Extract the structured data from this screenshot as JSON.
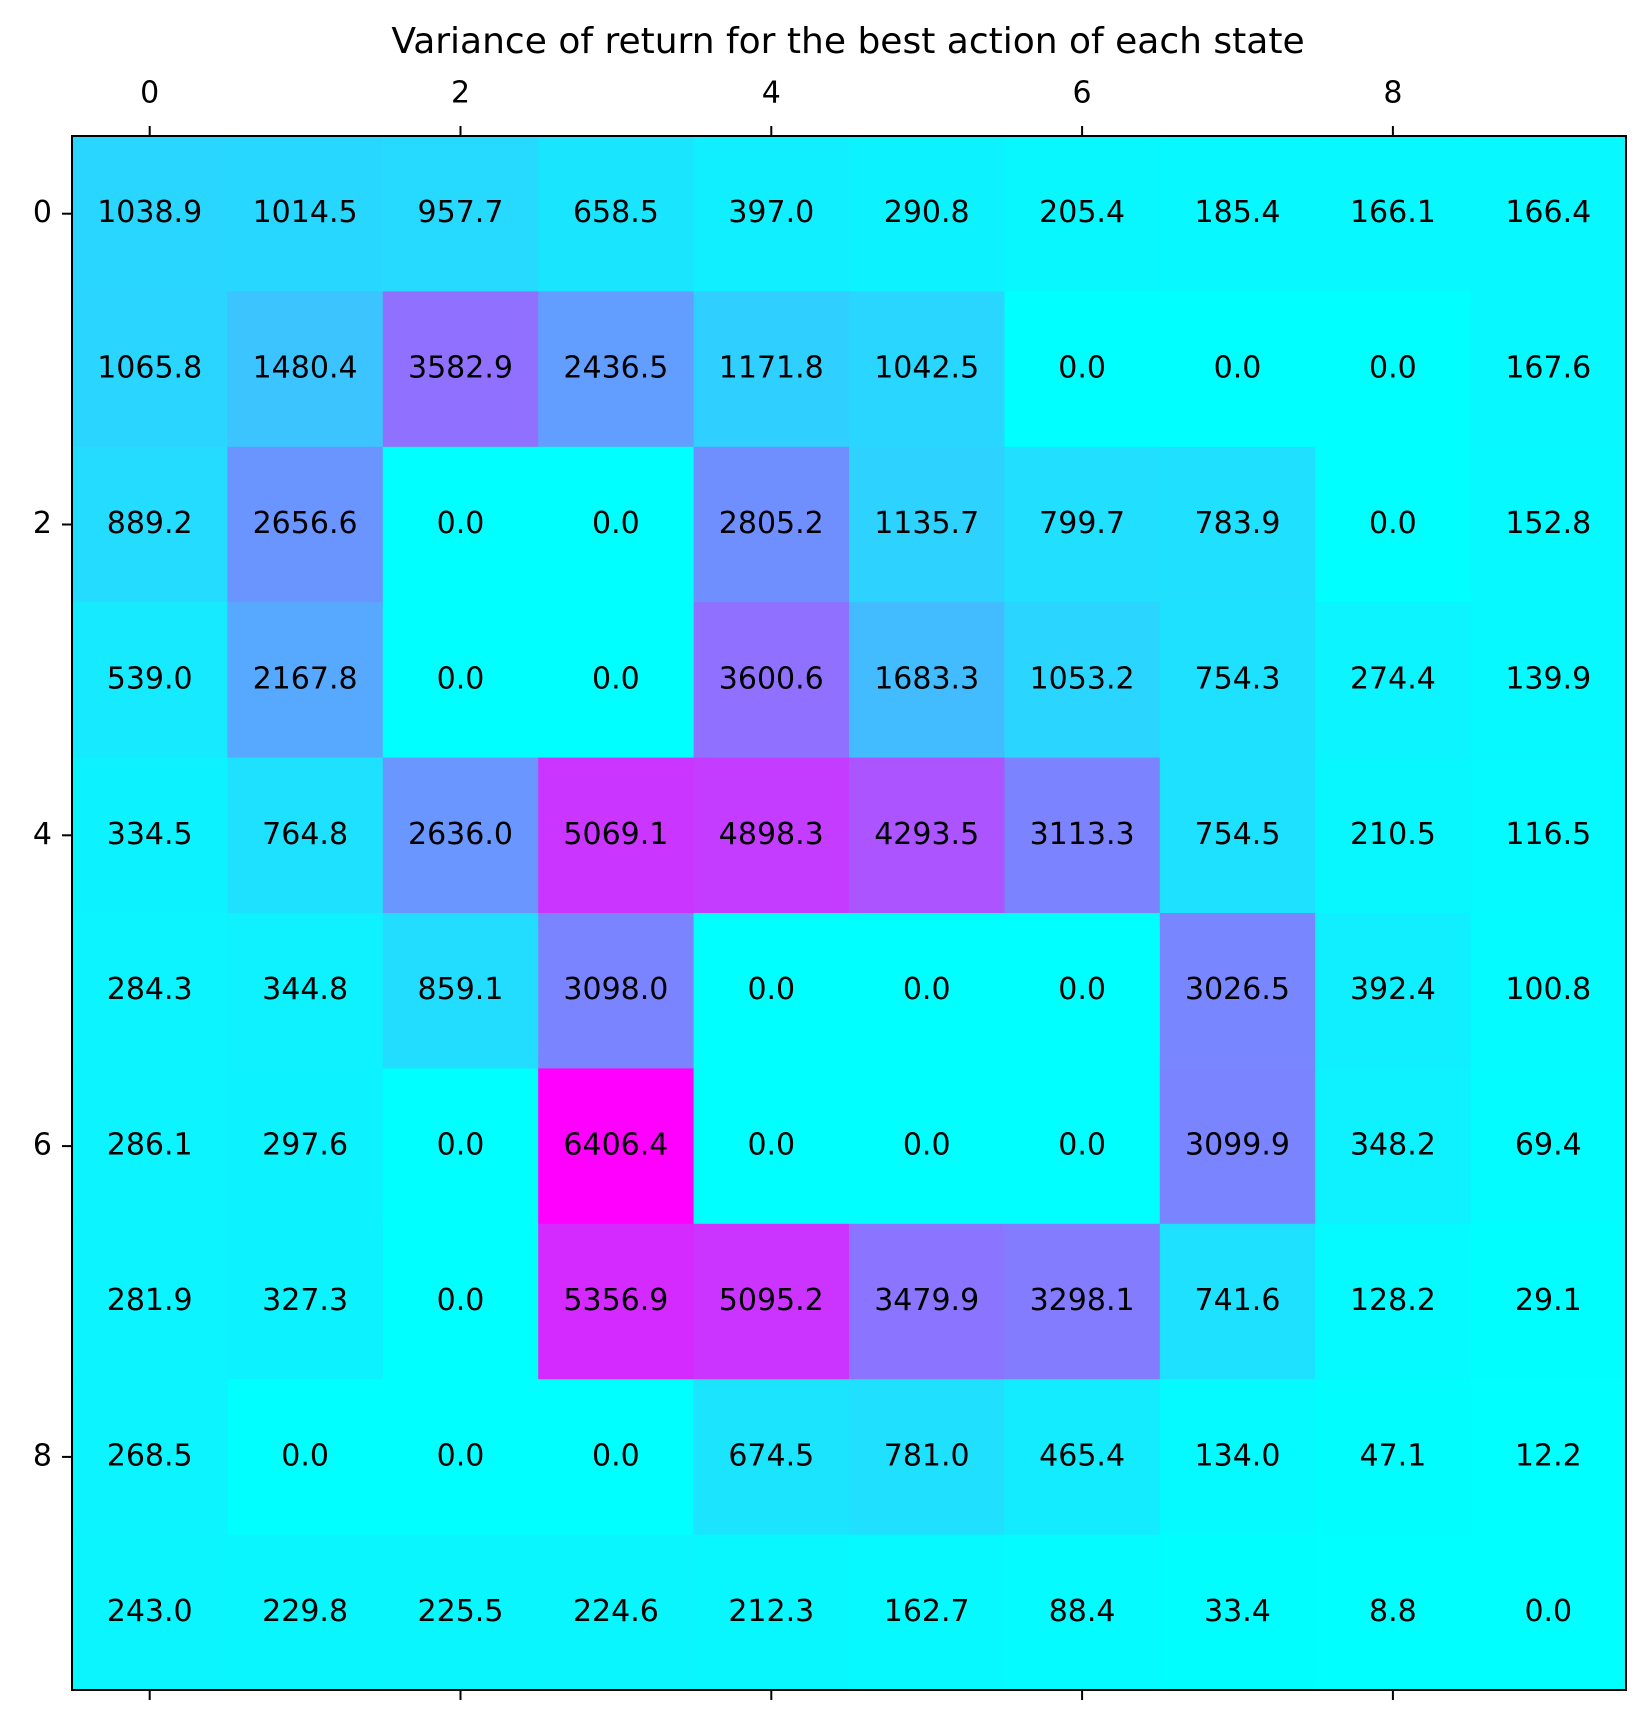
{
  "chart_data": {
    "type": "heatmap",
    "title": "Variance of return for the best action of each state",
    "xlabel": "",
    "ylabel": "",
    "x_ticks": [
      0,
      2,
      4,
      6,
      8
    ],
    "y_ticks": [
      0,
      2,
      4,
      6,
      8
    ],
    "x_tick_position": "top",
    "colormap": "cool",
    "color_min": "#00ffff",
    "color_max": "#ff00ff",
    "value_range": [
      0.0,
      6406.4
    ],
    "grid": false,
    "values": [
      [
        1038.9,
        1014.5,
        957.7,
        658.5,
        397.0,
        290.8,
        205.4,
        185.4,
        166.1,
        166.4
      ],
      [
        1065.8,
        1480.4,
        3582.9,
        2436.5,
        1171.8,
        1042.5,
        0.0,
        0.0,
        0.0,
        167.6
      ],
      [
        889.2,
        2656.6,
        0.0,
        0.0,
        2805.2,
        1135.7,
        799.7,
        783.9,
        0.0,
        152.8
      ],
      [
        539.0,
        2167.8,
        0.0,
        0.0,
        3600.6,
        1683.3,
        1053.2,
        754.3,
        274.4,
        139.9
      ],
      [
        334.5,
        764.8,
        2636.0,
        5069.1,
        4898.3,
        4293.5,
        3113.3,
        754.5,
        210.5,
        116.5
      ],
      [
        284.3,
        344.8,
        859.1,
        3098.0,
        0.0,
        0.0,
        0.0,
        3026.5,
        392.4,
        100.8
      ],
      [
        286.1,
        297.6,
        0.0,
        6406.4,
        0.0,
        0.0,
        0.0,
        3099.9,
        348.2,
        69.4
      ],
      [
        281.9,
        327.3,
        0.0,
        5356.9,
        5095.2,
        3479.9,
        3298.1,
        741.6,
        128.2,
        29.1
      ],
      [
        268.5,
        0.0,
        0.0,
        0.0,
        674.5,
        781.0,
        465.4,
        134.0,
        47.1,
        12.2
      ],
      [
        243.0,
        229.8,
        225.5,
        224.6,
        212.3,
        162.7,
        88.4,
        33.4,
        8.8,
        0.0
      ]
    ]
  }
}
